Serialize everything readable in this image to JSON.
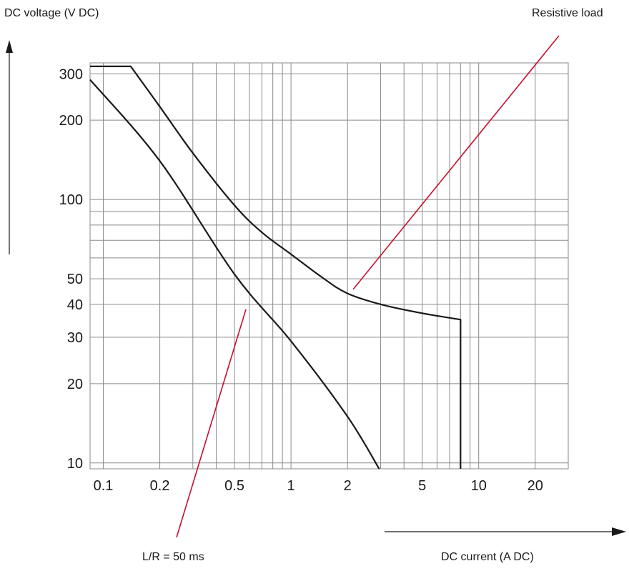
{
  "chart_data": {
    "type": "line",
    "title": "",
    "ylabel": "DC voltage (V DC)",
    "xlabel": "DC current (A DC)",
    "x_scale": "log",
    "y_scale": "log",
    "xlim": [
      0.085,
      30
    ],
    "ylim": [
      9.5,
      330
    ],
    "x_ticks": [
      {
        "value": 0.1,
        "label": "0.1"
      },
      {
        "value": 0.2,
        "label": "0.2"
      },
      {
        "value": 0.5,
        "label": "0.5"
      },
      {
        "value": 1,
        "label": "1"
      },
      {
        "value": 2,
        "label": "2"
      },
      {
        "value": 5,
        "label": "5"
      },
      {
        "value": 10,
        "label": "10"
      },
      {
        "value": 20,
        "label": "20"
      }
    ],
    "y_ticks": [
      {
        "value": 10,
        "label": "10"
      },
      {
        "value": 20,
        "label": "20"
      },
      {
        "value": 30,
        "label": "30"
      },
      {
        "value": 40,
        "label": "40"
      },
      {
        "value": 50,
        "label": "50"
      },
      {
        "value": 100,
        "label": "100"
      },
      {
        "value": 200,
        "label": "200"
      },
      {
        "value": 300,
        "label": "300"
      }
    ],
    "x_grid": [
      0.1,
      0.2,
      0.3,
      0.4,
      0.5,
      0.6,
      0.7,
      0.8,
      0.9,
      1,
      2,
      3,
      4,
      5,
      6,
      7,
      8,
      9,
      10,
      20,
      30
    ],
    "y_grid": [
      10,
      20,
      30,
      40,
      50,
      60,
      70,
      80,
      90,
      100,
      200,
      300
    ],
    "grid": true,
    "series": [
      {
        "name": "Resistive load",
        "x": [
          0.085,
          0.14,
          0.2,
          0.3,
          0.5,
          0.7,
          1.0,
          1.5,
          2.0,
          3.0,
          5.0,
          8.0,
          8.0
        ],
        "y": [
          320,
          320,
          225,
          150,
          95,
          75,
          62,
          50,
          44,
          40,
          37,
          35,
          9.5
        ]
      },
      {
        "name": "L/R = 50 ms",
        "x": [
          0.085,
          0.2,
          0.5,
          1.0,
          2.0,
          2.95
        ],
        "y": [
          285,
          140,
          52,
          29,
          15,
          9.5
        ]
      }
    ],
    "annotations": [
      {
        "text": "Resistive load"
      },
      {
        "text": "L/R = 50 ms"
      }
    ],
    "colors": {
      "curve": "#1a1a1a",
      "annotation_line": "#c8102e",
      "grid": "#8a8a8a"
    }
  }
}
